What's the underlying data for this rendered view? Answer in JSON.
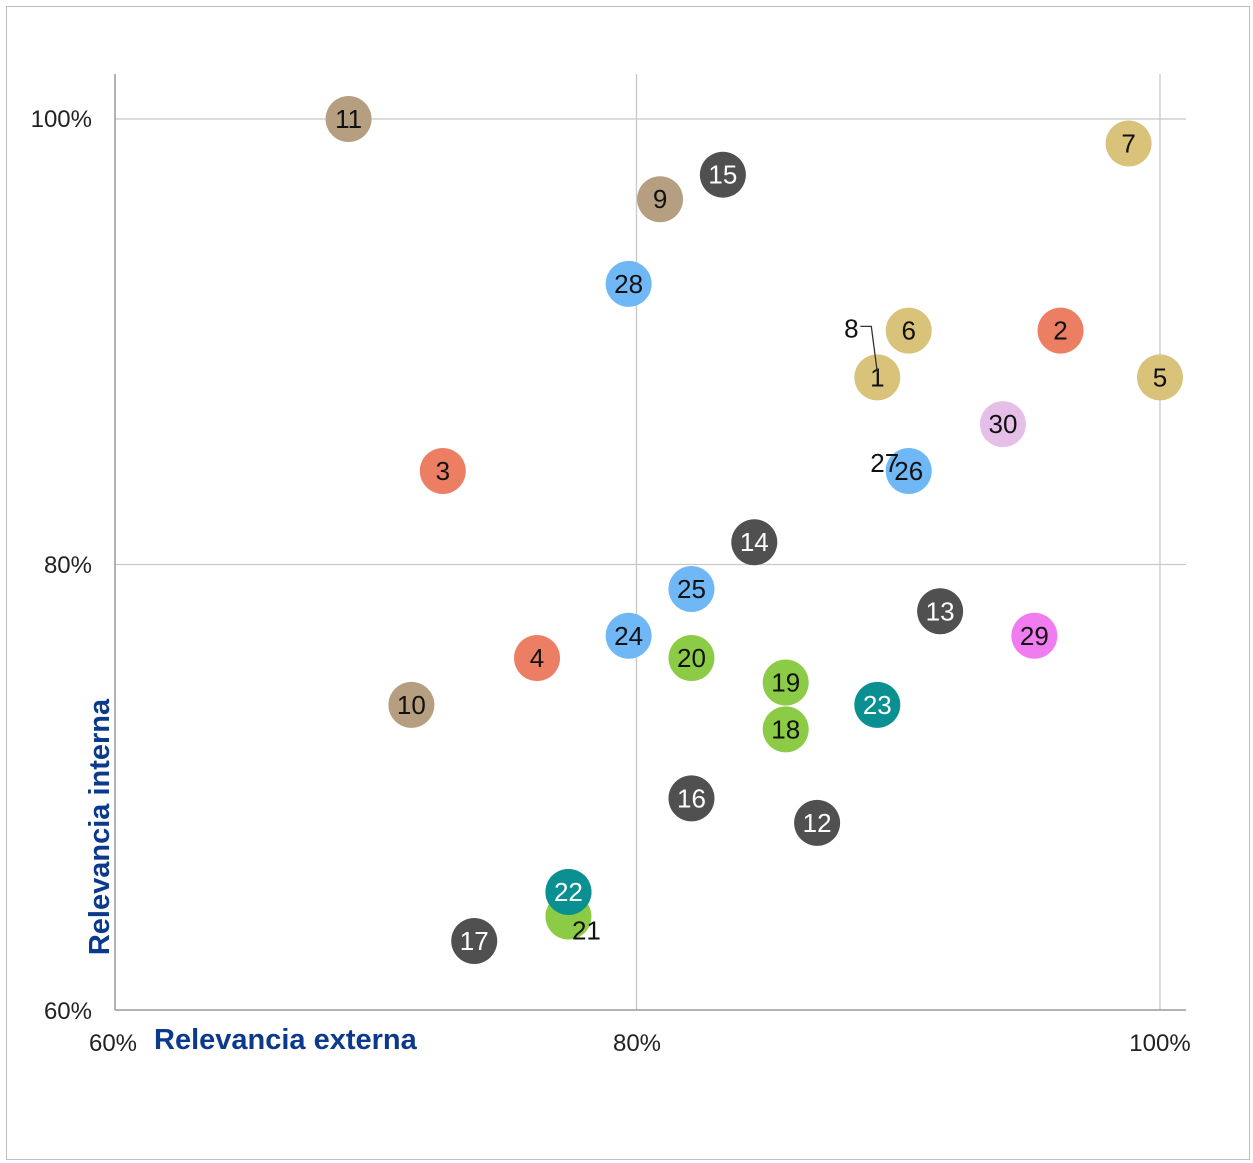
{
  "chart_data": {
    "type": "scatter",
    "title": "",
    "xlabel": "Relevancia externa",
    "ylabel": "Relevancia interna",
    "xlim": [
      60,
      101
    ],
    "ylim": [
      60,
      102
    ],
    "x_ticks": [
      "60%",
      "80%",
      "100%"
    ],
    "y_ticks": [
      "60%",
      "80%",
      "100%"
    ],
    "grid": true,
    "colors": {
      "gold": "#d9c27a",
      "salmon": "#ec7f63",
      "tan": "#b59f80",
      "dark": "#505050",
      "blue": "#6fb8f5",
      "green": "#8ccb45",
      "teal": "#0a9090",
      "lavender": "#e6bfe8",
      "magenta": "#f07cf0",
      "axis_title": "#0b3a8c"
    },
    "points": [
      {
        "label": "1",
        "x": 89.2,
        "y": 88.4,
        "color": "gold"
      },
      {
        "label": "2",
        "x": 96.2,
        "y": 90.5,
        "color": "salmon"
      },
      {
        "label": "3",
        "x": 72.6,
        "y": 84.2,
        "color": "salmon"
      },
      {
        "label": "4",
        "x": 76.2,
        "y": 75.8,
        "color": "salmon"
      },
      {
        "label": "5",
        "x": 100.0,
        "y": 88.4,
        "color": "gold"
      },
      {
        "label": "6",
        "x": 90.4,
        "y": 90.5,
        "color": "gold"
      },
      {
        "label": "7",
        "x": 98.8,
        "y": 98.9,
        "color": "gold"
      },
      {
        "label": "8",
        "x": 89.2,
        "y": 88.4,
        "color": "gold",
        "label_position": "outside"
      },
      {
        "label": "9",
        "x": 80.9,
        "y": 96.4,
        "color": "tan"
      },
      {
        "label": "10",
        "x": 71.4,
        "y": 73.7,
        "color": "tan"
      },
      {
        "label": "11",
        "x": 69.0,
        "y": 100.0,
        "color": "tan"
      },
      {
        "label": "12",
        "x": 86.9,
        "y": 68.4,
        "color": "dark"
      },
      {
        "label": "13",
        "x": 91.6,
        "y": 77.9,
        "color": "dark"
      },
      {
        "label": "14",
        "x": 84.5,
        "y": 81.0,
        "color": "dark"
      },
      {
        "label": "15",
        "x": 83.3,
        "y": 97.5,
        "color": "dark"
      },
      {
        "label": "16",
        "x": 82.1,
        "y": 69.5,
        "color": "dark"
      },
      {
        "label": "17",
        "x": 73.8,
        "y": 63.1,
        "color": "dark"
      },
      {
        "label": "18",
        "x": 85.7,
        "y": 72.6,
        "color": "green"
      },
      {
        "label": "19",
        "x": 85.7,
        "y": 74.7,
        "color": "green"
      },
      {
        "label": "20",
        "x": 82.1,
        "y": 75.8,
        "color": "green"
      },
      {
        "label": "21",
        "x": 77.4,
        "y": 64.2,
        "color": "green",
        "label_position": "outside"
      },
      {
        "label": "22",
        "x": 77.4,
        "y": 65.3,
        "color": "teal"
      },
      {
        "label": "23",
        "x": 89.2,
        "y": 73.7,
        "color": "teal"
      },
      {
        "label": "24",
        "x": 79.7,
        "y": 76.8,
        "color": "blue"
      },
      {
        "label": "25",
        "x": 82.1,
        "y": 78.9,
        "color": "blue"
      },
      {
        "label": "26",
        "x": 90.4,
        "y": 84.2,
        "color": "blue"
      },
      {
        "label": "27",
        "x": 90.4,
        "y": 84.2,
        "color": "blue",
        "label_position": "outside"
      },
      {
        "label": "28",
        "x": 79.7,
        "y": 92.6,
        "color": "blue"
      },
      {
        "label": "29",
        "x": 95.2,
        "y": 76.8,
        "color": "magenta"
      },
      {
        "label": "30",
        "x": 94.0,
        "y": 86.3,
        "color": "lavender"
      }
    ]
  }
}
